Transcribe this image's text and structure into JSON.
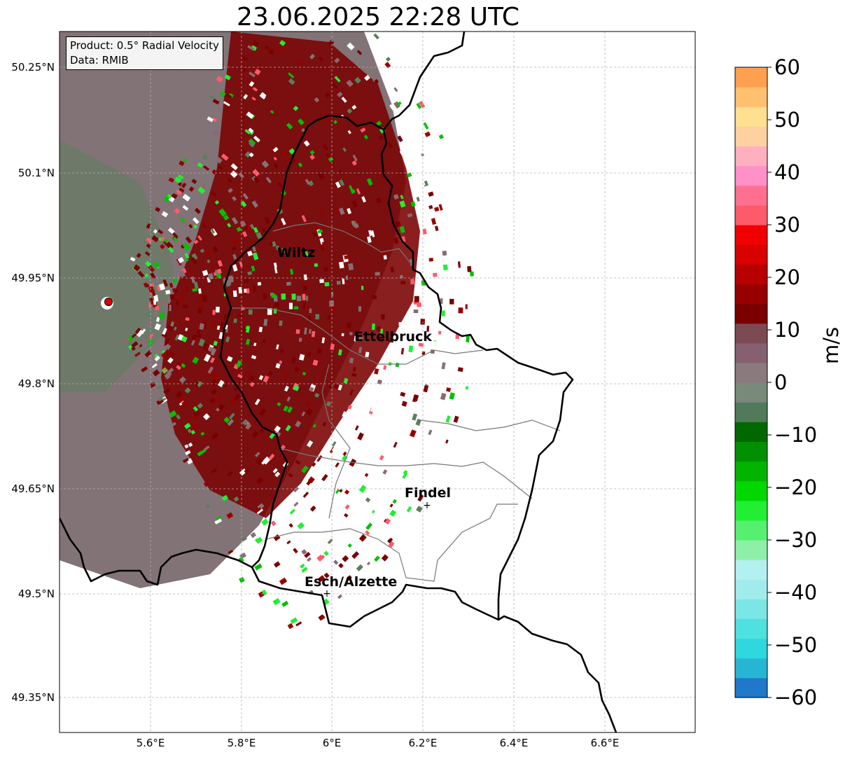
{
  "title": "23.06.2025 22:28 UTC",
  "info": {
    "product": "Product: 0.5° Radial Velocity",
    "data": "Data: RMIB"
  },
  "axes": {
    "lon_ticks": [
      "5.6°E",
      "5.8°E",
      "6°E",
      "6.2°E",
      "6.4°E",
      "6.6°E"
    ],
    "lat_ticks": [
      "50.25°N",
      "50.1°N",
      "49.95°N",
      "49.8°N",
      "49.65°N",
      "49.5°N",
      "49.35°N"
    ]
  },
  "cities": [
    {
      "name": "Wiltz",
      "marker": false
    },
    {
      "name": "Ettelbruck",
      "marker": false
    },
    {
      "name": "Findel",
      "marker": true
    },
    {
      "name": "Esch/Alzette",
      "marker": true
    }
  ],
  "radar_site_color": "#e00000",
  "colorbar": {
    "unit": "m/s",
    "min": -60,
    "max": 60,
    "ticks": [
      "60",
      "50",
      "40",
      "30",
      "20",
      "10",
      "0",
      "−10",
      "−20",
      "−30",
      "−40",
      "−50",
      "−60"
    ],
    "colors": [
      "#1f78c8",
      "#26b6d4",
      "#2ed8dc",
      "#4fe0e0",
      "#7ae6e6",
      "#a0ecec",
      "#b4f0f0",
      "#8ef0a8",
      "#55f070",
      "#22ee33",
      "#00d800",
      "#00b400",
      "#009000",
      "#006800",
      "#507a5a",
      "#7a8a7a",
      "#8a7a7e",
      "#866070",
      "#7c4a52",
      "#7a0000",
      "#980000",
      "#b80000",
      "#d80000",
      "#f00000",
      "#ff5a6a",
      "#ff7090",
      "#ff90c8",
      "#ffb0c0",
      "#ffd0a0",
      "#ffe090",
      "#ffc070",
      "#ffa050"
    ]
  }
}
